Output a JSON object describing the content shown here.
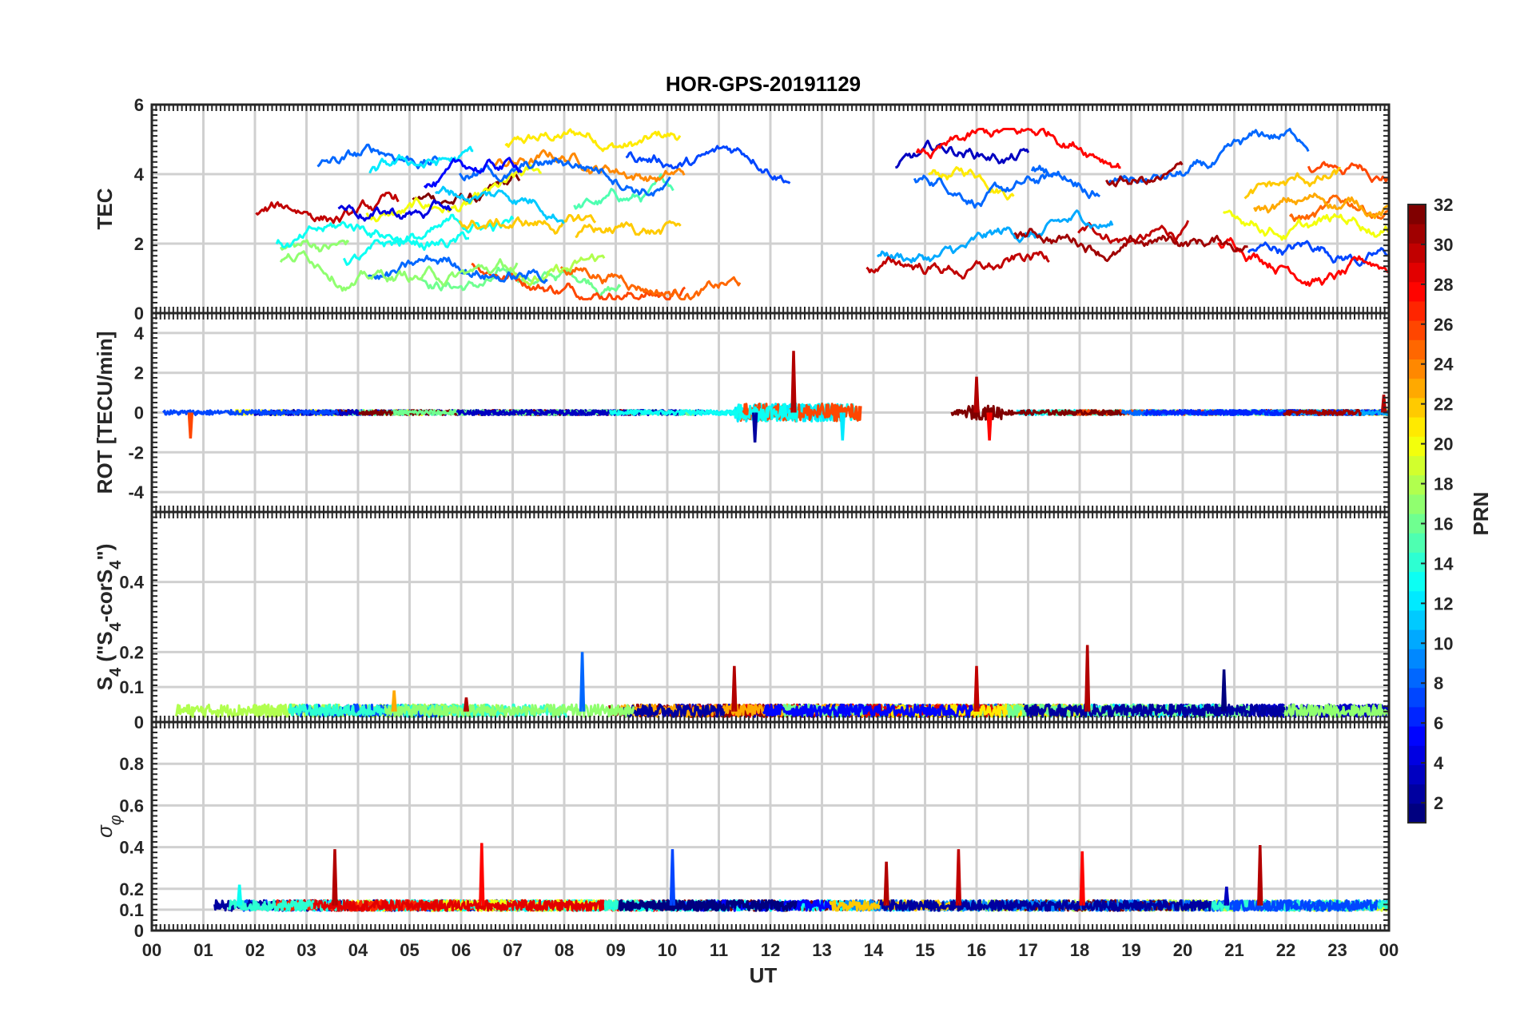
{
  "chart_data": {
    "type": "line",
    "title": "HOR-GPS-20191129",
    "xlabel": "UT",
    "x_ticks": [
      "00",
      "01",
      "02",
      "03",
      "04",
      "05",
      "06",
      "07",
      "08",
      "09",
      "10",
      "11",
      "12",
      "13",
      "14",
      "15",
      "16",
      "17",
      "18",
      "19",
      "20",
      "21",
      "22",
      "23",
      "00"
    ],
    "xlim": [
      0,
      24
    ],
    "grid": true,
    "colorbar": {
      "label": "PRN",
      "range": [
        1,
        32
      ],
      "ticks": [
        "2",
        "4",
        "6",
        "8",
        "10",
        "12",
        "14",
        "16",
        "18",
        "20",
        "22",
        "24",
        "26",
        "28",
        "30",
        "32"
      ],
      "colormap": "jet",
      "placement": "right"
    },
    "panels": [
      {
        "id": "tec",
        "ylabel": "TEC",
        "ylim": [
          0,
          6
        ],
        "y_ticks": [
          "0",
          "2",
          "4",
          "6"
        ],
        "y_tick_values": [
          0,
          2,
          4,
          6
        ],
        "baseline": null,
        "description": "Multi-PRN TEC arcs, values mostly between 1 and 5"
      },
      {
        "id": "rot",
        "ylabel": "ROT [TECU/min]",
        "ylim": [
          -5,
          5
        ],
        "y_ticks": [
          "-4",
          "-2",
          "0",
          "2",
          "4"
        ],
        "y_tick_values": [
          -4,
          -2,
          0,
          2,
          4
        ],
        "baseline": 0,
        "spikes": [
          {
            "x": 12.45,
            "y": 3.1
          },
          {
            "x": 11.7,
            "y": -1.5
          },
          {
            "x": 13.4,
            "y": -1.4
          },
          {
            "x": 16.0,
            "y": 1.8
          },
          {
            "x": 16.25,
            "y": -1.4
          },
          {
            "x": 0.75,
            "y": -1.3
          },
          {
            "x": 23.9,
            "y": 0.9
          }
        ]
      },
      {
        "id": "s4",
        "ylabel_parts": [
          "S",
          "4",
          " (\"S",
          "4",
          "-corS",
          "4",
          "\")"
        ],
        "ylim": [
          0,
          0.6
        ],
        "y_ticks": [
          "0",
          "0.1",
          "0.2",
          "0.4"
        ],
        "y_tick_values": [
          0,
          0.1,
          0.2,
          0.4
        ],
        "baseline": 0.03,
        "spikes": [
          {
            "x": 18.15,
            "y": 0.22
          },
          {
            "x": 8.35,
            "y": 0.2
          },
          {
            "x": 16.0,
            "y": 0.16
          },
          {
            "x": 11.3,
            "y": 0.16
          },
          {
            "x": 20.8,
            "y": 0.15
          },
          {
            "x": 4.7,
            "y": 0.09
          },
          {
            "x": 6.1,
            "y": 0.07
          }
        ]
      },
      {
        "id": "sigphi",
        "ylabel_parts": [
          "σ",
          "φ"
        ],
        "ylim": [
          0,
          1
        ],
        "y_ticks": [
          "0",
          "0.1",
          "0.2",
          "0.4",
          "0.6",
          "0.8"
        ],
        "y_tick_values": [
          0,
          0.1,
          0.2,
          0.4,
          0.6,
          0.8
        ],
        "baseline": 0.12,
        "spikes": [
          {
            "x": 3.55,
            "y": 0.39
          },
          {
            "x": 6.4,
            "y": 0.42
          },
          {
            "x": 10.1,
            "y": 0.39
          },
          {
            "x": 14.25,
            "y": 0.33
          },
          {
            "x": 15.65,
            "y": 0.39
          },
          {
            "x": 18.05,
            "y": 0.38
          },
          {
            "x": 21.5,
            "y": 0.41
          },
          {
            "x": 1.7,
            "y": 0.22
          },
          {
            "x": 20.85,
            "y": 0.21
          }
        ]
      }
    ]
  }
}
